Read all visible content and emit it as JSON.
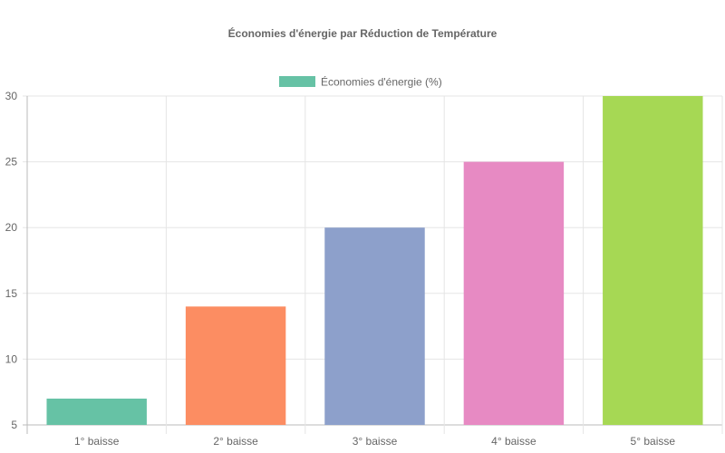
{
  "chart_data": {
    "type": "bar",
    "title": "Économies d'énergie par Réduction de Température",
    "categories": [
      "1° baisse",
      "2° baisse",
      "3° baisse",
      "4° baisse",
      "5° baisse"
    ],
    "series": [
      {
        "name": "Économies d'énergie (%)",
        "values": [
          7,
          14,
          20,
          25,
          30
        ],
        "colors": [
          "#66c2a5",
          "#fc8d62",
          "#8da0cb",
          "#e78ac3",
          "#a6d854"
        ]
      }
    ],
    "xlabel": "",
    "ylabel": "",
    "ylim": [
      5,
      30
    ],
    "yticks": [
      "5",
      "10",
      "15",
      "20",
      "25",
      "30"
    ],
    "grid": true,
    "legend": "top-center"
  }
}
